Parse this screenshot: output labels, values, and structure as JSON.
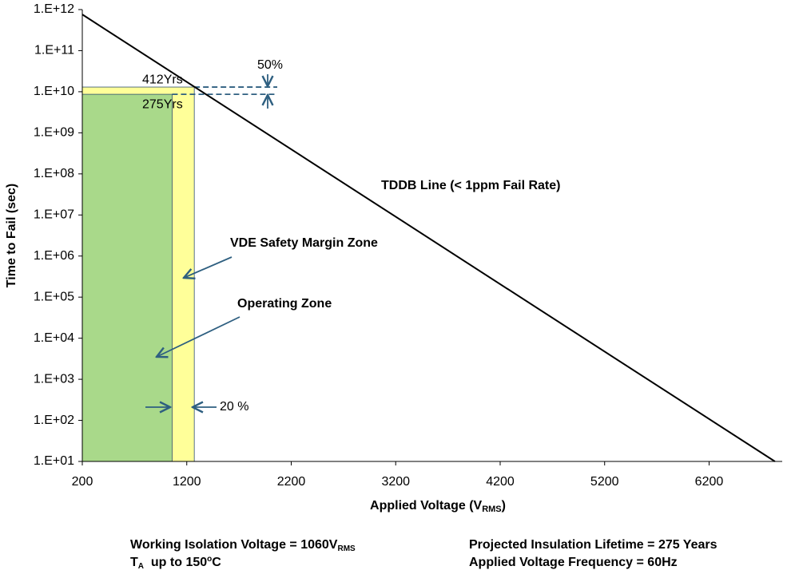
{
  "chart_data": {
    "type": "line",
    "xlabel": [
      "Applied Voltage (V",
      "RMS",
      ")"
    ],
    "ylabel": "Time to Fail (sec)",
    "xlim": [
      200,
      6900
    ],
    "xticks": [
      200,
      1200,
      2200,
      3200,
      4200,
      5200,
      6200
    ],
    "ylim": [
      10,
      1000000000000
    ],
    "ylog": true,
    "yticks": [
      {
        "value": 1000000000000,
        "label": "1.E+12"
      },
      {
        "value": 100000000000,
        "label": "1.E+11"
      },
      {
        "value": 10000000000,
        "label": "1.E+10"
      },
      {
        "value": 1000000000,
        "label": "1.E+09"
      },
      {
        "value": 100000000,
        "label": "1.E+08"
      },
      {
        "value": 10000000,
        "label": "1.E+07"
      },
      {
        "value": 1000000,
        "label": "1.E+06"
      },
      {
        "value": 100000,
        "label": "1.E+05"
      },
      {
        "value": 10000,
        "label": "1.E+04"
      },
      {
        "value": 1000,
        "label": "1.E+03"
      },
      {
        "value": 100,
        "label": "1.E+02"
      },
      {
        "value": 10,
        "label": "1.E+01"
      }
    ],
    "series": [
      {
        "name": "TDDB Line (< 1ppm Fail Rate)",
        "color": "#000000",
        "x": [
          200,
          6830
        ],
        "values": [
          760000000000,
          10
        ]
      }
    ],
    "zones": [
      {
        "name": "VDE Safety Margin Zone",
        "color": "#ffff99",
        "x": [
          200,
          1272
        ],
        "top": 13000000000,
        "top_label": "412Yrs"
      },
      {
        "name": "Operating  Zone",
        "color": "#a9d98a",
        "x": [
          200,
          1060
        ],
        "top": 8670000000,
        "top_label": "275Yrs"
      }
    ],
    "annotations": [
      "50%",
      "20 %"
    ],
    "footer": {
      "left": [
        [
          "Working Isolation Voltage = 1060V",
          "RMS"
        ],
        [
          "T",
          "A",
          "  up to 150",
          "o",
          "C"
        ]
      ],
      "right": [
        "Projected Insulation Lifetime = 275 Years",
        "Applied Voltage Frequency = 60Hz"
      ]
    }
  }
}
